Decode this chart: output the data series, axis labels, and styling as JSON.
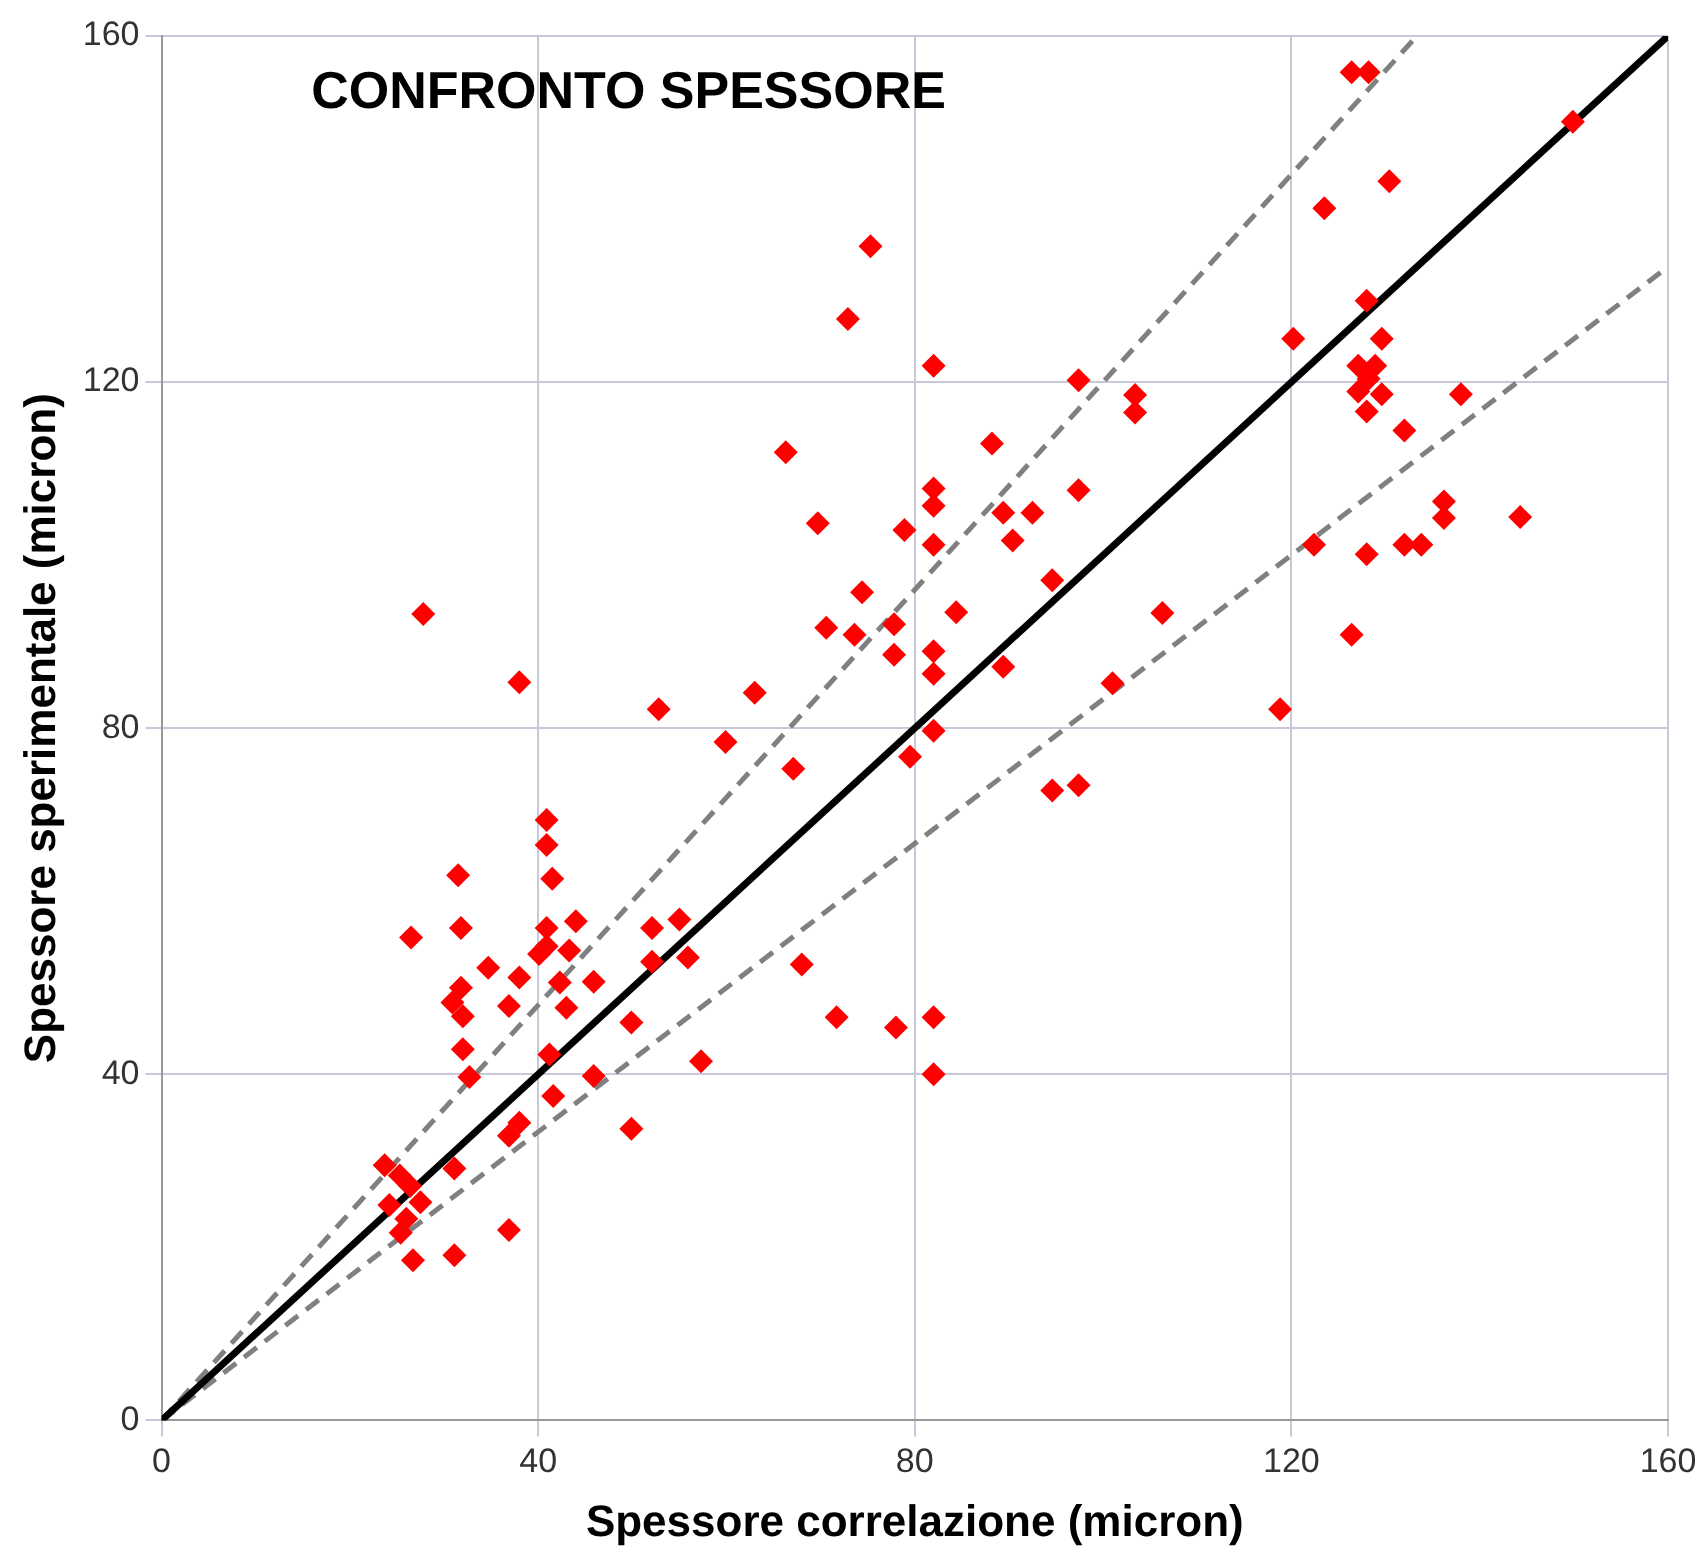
{
  "chart_data": {
    "type": "scatter",
    "title": "CONFRONTO SPESSORE",
    "xlabel": "Spessore correlazione (micron)",
    "ylabel": "Spessore sperimentale (micron)",
    "xlim": [
      0,
      160
    ],
    "ylim": [
      0,
      160
    ],
    "xticks": [
      0,
      40,
      80,
      120,
      160
    ],
    "yticks": [
      0,
      40,
      80,
      120,
      160
    ],
    "grid": true,
    "marker": "diamond",
    "series": [
      {
        "color": "#ff0000",
        "x": [
          27.8,
          38,
          52.8,
          63,
          59.9,
          40.9,
          40.9,
          41.5,
          31.5,
          31.8,
          26.5,
          40.9,
          40.9,
          40.1,
          44,
          43.3,
          34.7,
          38,
          31.8,
          30.9,
          32,
          36.9,
          42.3,
          45.9,
          43,
          52.1,
          55,
          52.1,
          55.9,
          49.9,
          57.3,
          32,
          32.7,
          41.2,
          41.6,
          45.9,
          49.9,
          38,
          36.9,
          31.1,
          23.7,
          25.3,
          26.4,
          27.5,
          24.2,
          26,
          25.4,
          36.9,
          31.1,
          26.7,
          75.3,
          72.9,
          82,
          66.3,
          69.7,
          78.9,
          82,
          82,
          82,
          88.2,
          89.4,
          92.5,
          90.4,
          97.4,
          97.4,
          103.4,
          103.4,
          94.6,
          74.4,
          70.6,
          73.6,
          77.8,
          77.8,
          84.4,
          82,
          82,
          89.4,
          106.3,
          101,
          67.1,
          82,
          79.5,
          94.6,
          97.4,
          68,
          71.7,
          78,
          82,
          82,
          126.4,
          128.2,
          149.9,
          130.4,
          123.5,
          128,
          120.2,
          129.6,
          127.1,
          128.9,
          128.2,
          127.1,
          129.6,
          128,
          138,
          132,
          136.2,
          136.2,
          144.3,
          122.4,
          128,
          132,
          133.8,
          126.4,
          118.8
        ],
        "values": [
          93.2,
          85.3,
          82.2,
          84.1,
          78.4,
          69.4,
          66.5,
          62.6,
          63,
          56.9,
          55.8,
          56.9,
          54.8,
          53.9,
          57.7,
          54.3,
          52.3,
          51.2,
          50,
          48.3,
          46.7,
          47.9,
          50.6,
          50.7,
          47.7,
          56.9,
          57.9,
          53,
          53.5,
          46,
          41.5,
          42.9,
          39.7,
          42.3,
          37.5,
          39.8,
          33.7,
          34.4,
          32.9,
          29.1,
          29.5,
          28.3,
          27.1,
          25.2,
          24.9,
          23.3,
          21.7,
          22,
          19.1,
          18.5,
          135.7,
          127.3,
          121.9,
          111.9,
          103.7,
          102.9,
          107.7,
          105.7,
          101.2,
          112.9,
          104.9,
          104.9,
          101.7,
          120.2,
          107.5,
          118.5,
          116.5,
          97.1,
          95.7,
          91.6,
          90.8,
          92,
          88.5,
          93.4,
          88.9,
          86.3,
          87.1,
          93.3,
          85.2,
          75.3,
          79.7,
          76.7,
          72.8,
          73.4,
          52.7,
          46.6,
          45.4,
          46.6,
          40,
          155.8,
          155.8,
          150.1,
          143.2,
          140.1,
          129.4,
          125,
          125,
          121.9,
          121.9,
          120.4,
          118.9,
          118.6,
          116.6,
          118.6,
          114.4,
          106.2,
          104.3,
          104.4,
          101.2,
          100.1,
          101.2,
          101.2,
          90.8,
          82.2
        ]
      },
      {
        "type": "line",
        "color": "#000000",
        "line_style": "solid",
        "marker": "none",
        "x": [
          0,
          160
        ],
        "values": [
          0,
          160
        ]
      },
      {
        "type": "line",
        "color": "#808080",
        "line_style": "dashed",
        "marker": "none",
        "x": [
          0,
          133.33
        ],
        "values": [
          0,
          160
        ]
      },
      {
        "type": "line",
        "color": "#808080",
        "line_style": "dashed",
        "marker": "none",
        "x": [
          0,
          160
        ],
        "values": [
          0,
          133.33
        ]
      }
    ]
  }
}
